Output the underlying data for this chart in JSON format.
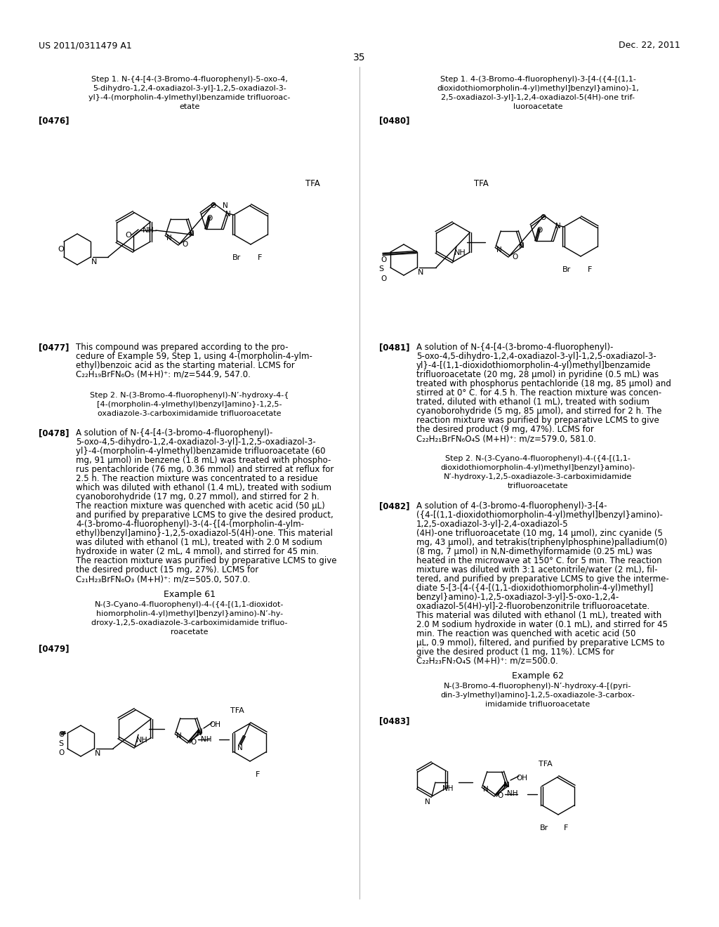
{
  "background": "#ffffff",
  "header_left": "US 2011/0311479 A1",
  "header_right": "Dec. 22, 2011",
  "page_number": "35"
}
